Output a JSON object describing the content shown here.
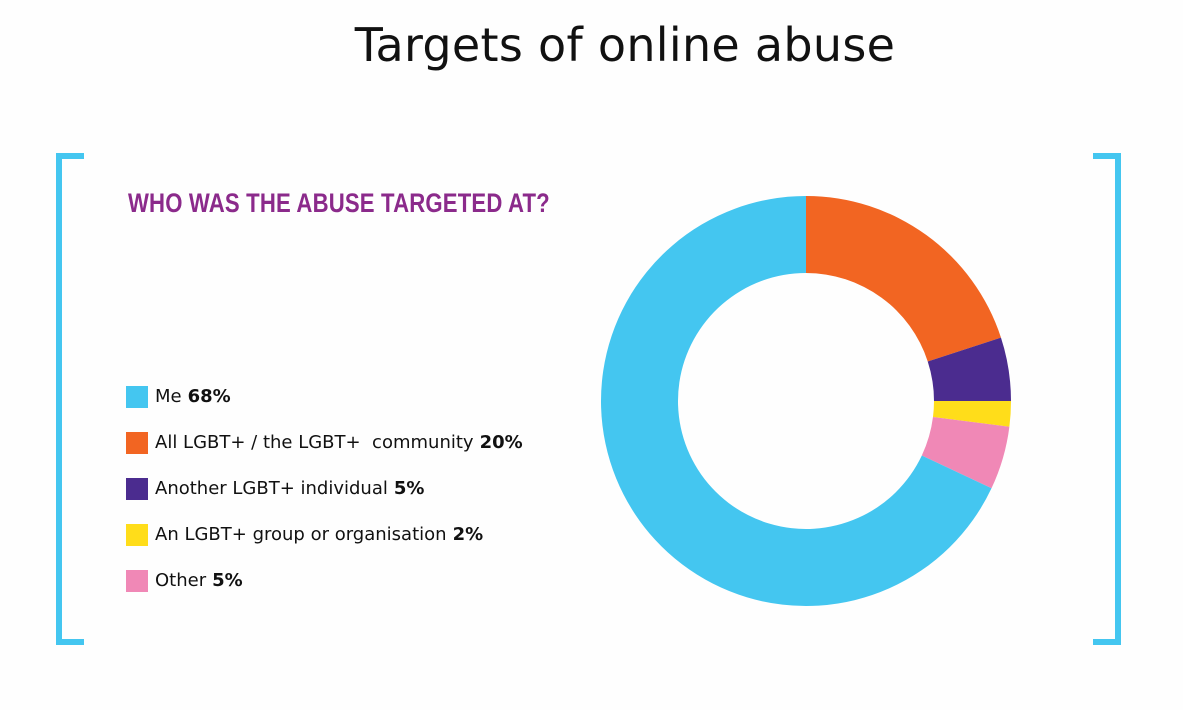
{
  "page": {
    "title": "Targets of online abuse"
  },
  "chart_data": {
    "type": "pie",
    "variant": "donut",
    "title": "WHO WAS THE ABUSE TARGETED AT?",
    "legend_position": "left",
    "start": "top, clockwise",
    "categories": [
      "Me",
      "All LGBT+ / the LGBT+  community",
      "Another LGBT+ individual",
      "An LGBT+ group or organisation",
      "Other"
    ],
    "values": [
      68,
      20,
      5,
      2,
      5
    ],
    "value_labels": [
      "68%",
      "20%",
      "5%",
      "2%",
      "5%"
    ],
    "slice_order": [
      "All LGBT+ / the LGBT+  community",
      "Another LGBT+ individual",
      "An LGBT+ group or organisation",
      "Other",
      "Me"
    ],
    "colors": [
      "#44c6f0",
      "#f26522",
      "#4b2c8f",
      "#ffdd1a",
      "#f088b6"
    ],
    "frame_color": "#44c6f0",
    "title_color": "#8b2a8b"
  }
}
